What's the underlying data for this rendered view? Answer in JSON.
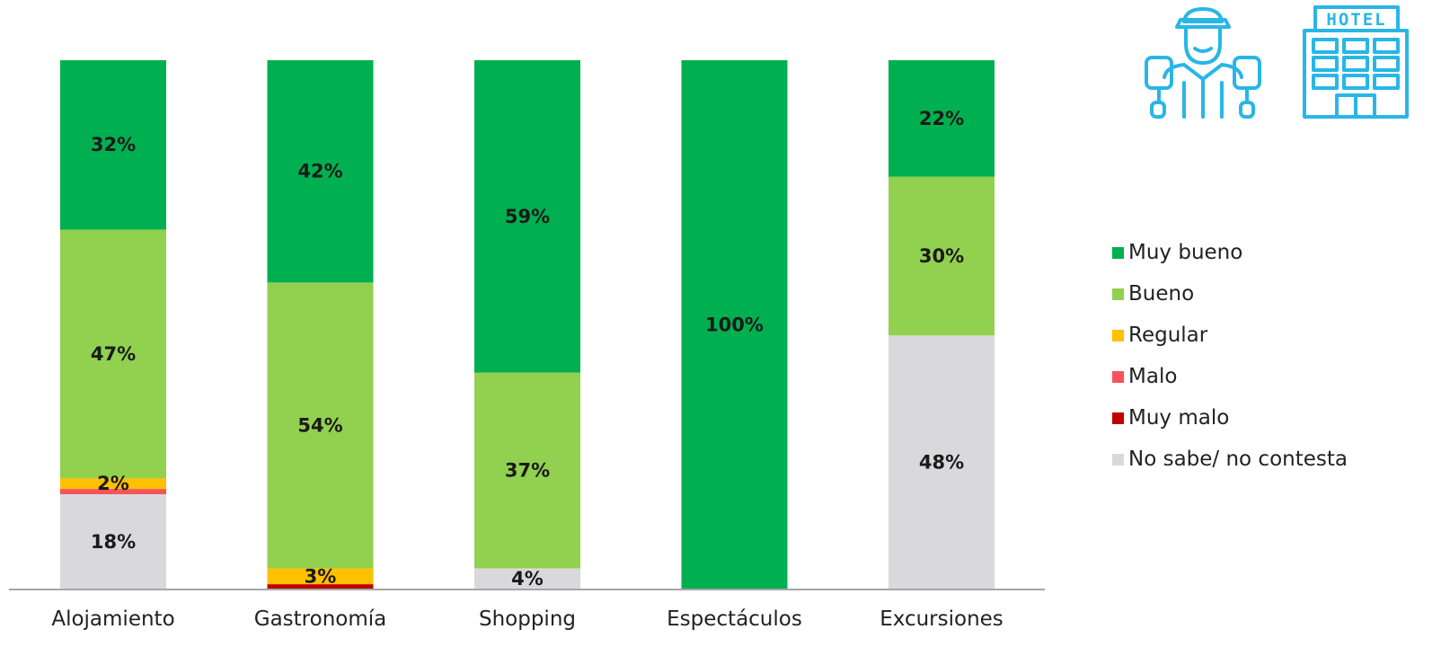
{
  "chart_data": {
    "type": "bar",
    "stacked": true,
    "categories": [
      "Alojamiento",
      "Gastronomía",
      "Shopping",
      "Espectáculos",
      "Excursiones"
    ],
    "series": [
      {
        "name": "No sabe/ no contesta",
        "color": "#d9d9db",
        "values": [
          18,
          0,
          4,
          0,
          48
        ],
        "labels": [
          "18%",
          "",
          "4%",
          "",
          "48%"
        ]
      },
      {
        "name": "Muy malo",
        "color": "#c00000",
        "values": [
          0,
          1,
          0,
          0,
          0
        ],
        "labels": [
          "",
          "",
          "",
          "",
          ""
        ]
      },
      {
        "name": "Malo",
        "color": "#f4545a",
        "values": [
          1,
          0,
          0,
          0,
          0
        ],
        "labels": [
          "",
          "",
          "",
          "",
          ""
        ]
      },
      {
        "name": "Regular",
        "color": "#ffc000",
        "values": [
          2,
          3,
          0,
          0,
          0
        ],
        "labels": [
          "2%",
          "3%",
          "",
          "",
          ""
        ]
      },
      {
        "name": "Bueno",
        "color": "#92d050",
        "values": [
          47,
          54,
          37,
          0,
          30
        ],
        "labels": [
          "47%",
          "54%",
          "37%",
          "",
          "30%"
        ]
      },
      {
        "name": "Muy bueno",
        "color": "#00b050",
        "values": [
          32,
          42,
          59,
          100,
          22
        ],
        "labels": [
          "32%",
          "42%",
          "59%",
          "100%",
          "22%"
        ]
      }
    ],
    "legend": {
      "position": "right",
      "order": [
        "Muy bueno",
        "Bueno",
        "Regular",
        "Malo",
        "Muy malo",
        "No sabe/ no contesta"
      ]
    },
    "ylim": [
      0,
      100
    ],
    "grid": false
  },
  "icons": {
    "tourist": {
      "name": "tourist-icon",
      "color": "#29b6e6"
    },
    "hotel": {
      "name": "hotel-icon",
      "color": "#29b6e6",
      "sign_text": "HOTEL"
    }
  }
}
